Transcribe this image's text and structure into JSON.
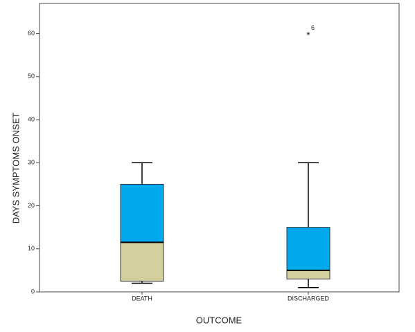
{
  "chart_data": {
    "type": "boxplot",
    "x_label": "OUTCOME",
    "y_label": "DAYS SYMPTOMS ONSET",
    "categories": [
      "DEATH",
      "DISCHARGED"
    ],
    "boxes": [
      {
        "min": 2,
        "q1": 2.5,
        "median": 11.5,
        "q3": 25,
        "max": 30
      },
      {
        "min": 1,
        "q1": 3,
        "median": 5,
        "q3": 15,
        "max": 30
      }
    ],
    "outliers": [
      {
        "category": "DISCHARGED",
        "value": 60,
        "label": "6"
      }
    ],
    "lower_color": "#d4d09e",
    "upper_color": "#00a8ec",
    "ylim": [
      0,
      67
    ],
    "yticks": [
      0,
      10,
      20,
      30,
      40,
      50,
      60
    ]
  }
}
